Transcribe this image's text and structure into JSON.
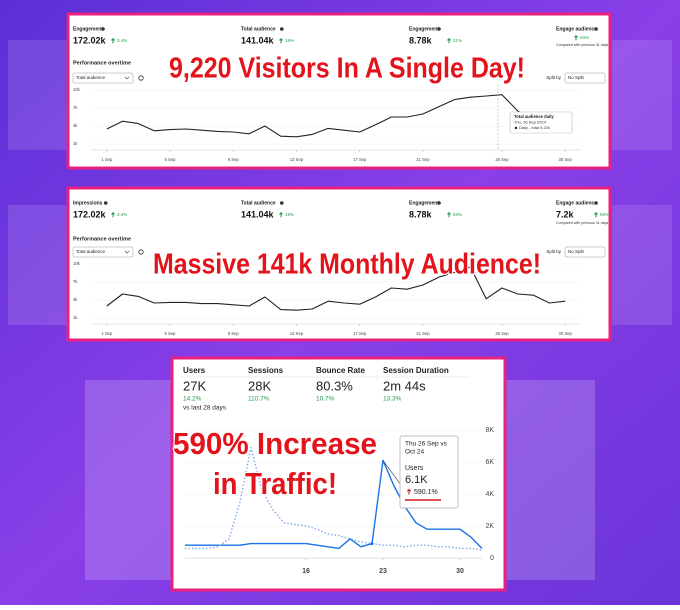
{
  "panels": [
    {
      "headline": "9,220 Visitors In A Single Day!",
      "metrics": [
        {
          "label": "Engagement",
          "value": "172.02k",
          "change": "3.4%"
        },
        {
          "label": "Total audience",
          "value": "141.04k",
          "change": "19%"
        },
        {
          "label": "Engagement",
          "value": "8.78k",
          "change": "21%"
        },
        {
          "label": "Engage audience",
          "change": "93%"
        }
      ],
      "note": "Compared with previous 31 days",
      "section_title": "Performance overtime",
      "dropdown": "Total audience",
      "split_label": "Split by",
      "split_value": "No Split",
      "chart": {
        "type": "line",
        "x": [
          1,
          2,
          3,
          4,
          5,
          6,
          7,
          8,
          9,
          10,
          11,
          12,
          13,
          14,
          15,
          16,
          17,
          18,
          19,
          20,
          21,
          22,
          23,
          24,
          25,
          26,
          27,
          28,
          29,
          30
        ],
        "values": [
          3.5,
          4.8,
          4.4,
          3.2,
          3.4,
          3.5,
          3.3,
          3.1,
          3.0,
          2.7,
          4.0,
          2.3,
          2.2,
          2.6,
          3.6,
          3.3,
          3.0,
          4.2,
          5.5,
          5.5,
          6.0,
          7.2,
          8.4,
          8.8,
          9.0,
          9.22,
          6.5,
          4.5,
          3.8,
          4.5
        ],
        "color": "#222222",
        "xlim": [
          0,
          31
        ],
        "xticks": [
          {
            "value": 1,
            "label": "1 Sep"
          },
          {
            "value": 5,
            "label": "5 Sep"
          },
          {
            "value": 9,
            "label": "9 Sep"
          },
          {
            "value": 13,
            "label": "13 Sep"
          },
          {
            "value": 17,
            "label": "17 Sep"
          },
          {
            "value": 21,
            "label": "21 Sep"
          },
          {
            "value": 26,
            "label": "26 Sep"
          },
          {
            "value": 30,
            "label": "30 Sep"
          }
        ],
        "ylim": [
          0,
          11
        ],
        "yticks": [
          {
            "value": 10,
            "label": "10k"
          },
          {
            "value": 7,
            "label": "7k"
          },
          {
            "value": 4,
            "label": "4k"
          },
          {
            "value": 1,
            "label": "1k"
          }
        ]
      },
      "tooltip": {
        "title": "Total audience daily",
        "date": "Thu, 26 Sep 2024",
        "line": "Daily - total 9.22k"
      }
    },
    {
      "headline": "Massive 141k Monthly Audience!",
      "metrics": [
        {
          "label": "Impressions",
          "value": "172.02k",
          "change": "3.4%"
        },
        {
          "label": "Total audience",
          "value": "141.04k",
          "change": "19%"
        },
        {
          "label": "Engagement",
          "value": "8.78k",
          "change": "93%"
        },
        {
          "label": "Engage audience",
          "value": "7.2k",
          "change": "93%"
        }
      ],
      "note": "Compared with previous 31 days",
      "section_title": "Performance overtime",
      "dropdown": "Total audience",
      "split_label": "Split by",
      "split_value": "No Split",
      "chart": {
        "type": "line",
        "x": [
          1,
          2,
          3,
          4,
          5,
          6,
          7,
          8,
          9,
          10,
          11,
          12,
          13,
          14,
          15,
          16,
          17,
          18,
          19,
          20,
          21,
          22,
          23,
          24,
          25,
          26,
          27,
          28,
          29,
          30
        ],
        "values": [
          3.0,
          5.0,
          4.6,
          3.5,
          3.6,
          3.6,
          3.4,
          3.4,
          3.2,
          3.0,
          4.5,
          2.4,
          2.3,
          2.5,
          3.8,
          3.5,
          3.3,
          4.5,
          6.0,
          5.8,
          6.5,
          7.8,
          8.6,
          9.5,
          4.2,
          6.0,
          5.0,
          4.8,
          3.5,
          3.8
        ],
        "color": "#222222",
        "xlim": [
          0,
          31
        ],
        "xticks": [
          {
            "value": 1,
            "label": "1 Sep"
          },
          {
            "value": 5,
            "label": "5 Sep"
          },
          {
            "value": 9,
            "label": "9 Sep"
          },
          {
            "value": 13,
            "label": "13 Sep"
          },
          {
            "value": 17,
            "label": "17 Sep"
          },
          {
            "value": 21,
            "label": "21 Sep"
          },
          {
            "value": 26,
            "label": "26 Sep"
          },
          {
            "value": 30,
            "label": "30 Sep"
          }
        ],
        "ylim": [
          0,
          11
        ],
        "yticks": [
          {
            "value": 10,
            "label": "10k"
          },
          {
            "value": 7,
            "label": "7k"
          },
          {
            "value": 4,
            "label": "4k"
          },
          {
            "value": 1,
            "label": "1k"
          }
        ]
      }
    },
    {
      "headline_lines": [
        "590% Increase",
        "in Traffic!"
      ],
      "metrics": [
        {
          "label": "Users",
          "value": "27K",
          "change": "14.2%"
        },
        {
          "label": "Sessions",
          "value": "28K",
          "change": "110.7%"
        },
        {
          "label": "Bounce Rate",
          "value": "80.3%",
          "change": "10.7%"
        },
        {
          "label": "Session Duration",
          "value": "2m 44s",
          "change": "13.3%"
        }
      ],
      "comparison": "vs last 28 days",
      "chart": {
        "type": "line",
        "x": [
          5,
          6,
          7,
          8,
          9,
          10,
          11,
          12,
          13,
          14,
          15,
          16,
          17,
          18,
          19,
          20,
          21,
          22,
          23,
          24,
          25,
          26,
          27,
          28,
          29,
          30,
          31,
          32
        ],
        "series": [
          {
            "color": "#1a73e8",
            "style": "solid",
            "values": [
              0.8,
              0.8,
              0.8,
              0.8,
              0.8,
              0.8,
              0.9,
              0.9,
              0.9,
              0.9,
              0.9,
              0.9,
              0.8,
              0.7,
              0.6,
              1.2,
              0.7,
              0.9,
              6.1,
              4.5,
              3.2,
              2.2,
              1.8,
              1.8,
              1.8,
              1.8,
              1.3,
              0.6
            ]
          },
          {
            "color": "#7fa9e8",
            "style": "dotted",
            "values": [
              0.6,
              0.6,
              0.6,
              0.7,
              1.2,
              3.5,
              6.9,
              4.2,
              3.0,
              2.2,
              2.1,
              2.0,
              1.8,
              1.5,
              1.4,
              1.2,
              1.0,
              0.9,
              0.8,
              0.8,
              0.7,
              0.8,
              0.8,
              0.7,
              0.7,
              0.6,
              0.6,
              0.5
            ]
          }
        ],
        "xlim": [
          5,
          32
        ],
        "xticks": [
          16,
          23,
          30
        ],
        "ylim": [
          0,
          8
        ],
        "yticks": [
          0,
          {
            "value": 2,
            "label": "2K"
          },
          {
            "value": 4,
            "label": "4K"
          },
          {
            "value": 6,
            "label": "6K"
          },
          {
            "value": 8,
            "label": "8K"
          }
        ]
      },
      "tooltip": {
        "title_lines": [
          "Thu 26 Sep vs",
          "Oct 24"
        ],
        "label": "Users",
        "value": "6.1K",
        "change": "590.1%"
      }
    }
  ]
}
